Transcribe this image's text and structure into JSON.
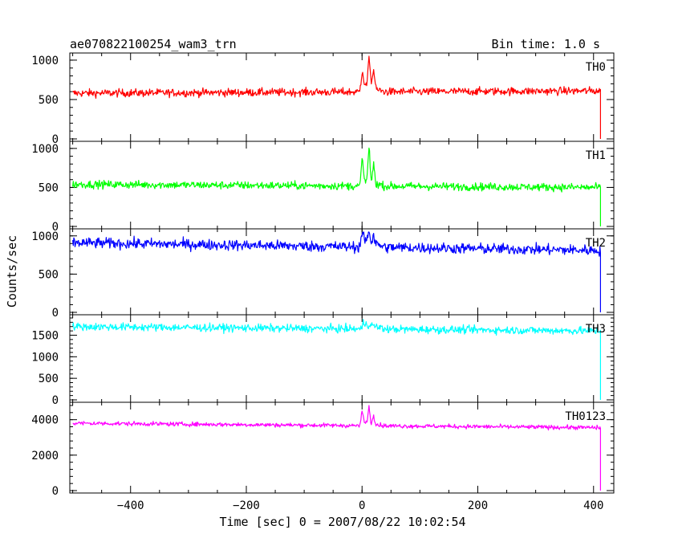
{
  "header": {
    "left": "ae070822100254_wam3_trn",
    "right": "Bin time: 1.0 s"
  },
  "chart_data": {
    "type": "line",
    "title": "ae070822100254_wam3_trn",
    "subtitle": "Bin time: 1.0 s",
    "xlabel": "Time [sec] 0 = 2007/08/22 10:02:54",
    "ylabel": "Counts/sec",
    "xlim": [
      -505,
      435
    ],
    "x_ticks": [
      -400,
      -200,
      0,
      200,
      400
    ],
    "x_tick_labels": [
      "−400",
      "−200",
      "0",
      "200",
      "400"
    ],
    "data_range": [
      -500,
      413
    ],
    "grid": false,
    "legend": "none",
    "series": [
      {
        "name": "TH0",
        "color": "#ff0000",
        "ylim": [
          0,
          1050
        ],
        "y_ticks": [
          0,
          500,
          1000
        ],
        "y_tick_labels": [
          "0",
          "500",
          "1000"
        ],
        "baseline_start": 580,
        "baseline_end": 610,
        "noise": 25,
        "spikes": [
          {
            "x": 0,
            "y": 840
          },
          {
            "x": 12,
            "y": 1010
          },
          {
            "x": 20,
            "y": 850
          }
        ],
        "drop": {
          "x": 412,
          "y": 0
        },
        "points": [
          [
            -500,
            580
          ],
          [
            -300,
            585
          ],
          [
            -100,
            590
          ],
          [
            -5,
            600
          ],
          [
            0,
            840
          ],
          [
            5,
            700
          ],
          [
            12,
            1010
          ],
          [
            20,
            850
          ],
          [
            40,
            640
          ],
          [
            200,
            605
          ],
          [
            400,
            610
          ],
          [
            412,
            0
          ]
        ]
      },
      {
        "name": "TH1",
        "color": "#00ff00",
        "ylim": [
          0,
          1050
        ],
        "y_ticks": [
          0,
          500,
          1000
        ],
        "y_tick_labels": [
          "0",
          "500",
          "1000"
        ],
        "baseline_start": 540,
        "baseline_end": 500,
        "noise": 25,
        "spikes": [
          {
            "x": 0,
            "y": 840
          },
          {
            "x": 12,
            "y": 960
          },
          {
            "x": 20,
            "y": 780
          }
        ],
        "drop": {
          "x": 412,
          "y": 0
        },
        "points": [
          [
            -500,
            540
          ],
          [
            -300,
            535
          ],
          [
            -100,
            525
          ],
          [
            -5,
            520
          ],
          [
            0,
            840
          ],
          [
            5,
            650
          ],
          [
            12,
            960
          ],
          [
            20,
            780
          ],
          [
            40,
            560
          ],
          [
            200,
            510
          ],
          [
            400,
            500
          ],
          [
            412,
            0
          ]
        ]
      },
      {
        "name": "TH2",
        "color": "#0000ff",
        "ylim": [
          0,
          1050
        ],
        "y_ticks": [
          0,
          500,
          1000
        ],
        "y_tick_labels": [
          "0",
          "500",
          "1000"
        ],
        "baseline_start": 910,
        "baseline_end": 810,
        "noise": 35,
        "spikes": [
          {
            "x": 0,
            "y": 1050
          },
          {
            "x": 12,
            "y": 1040
          },
          {
            "x": 20,
            "y": 950
          }
        ],
        "drop": {
          "x": 412,
          "y": 0
        },
        "points": [
          [
            -500,
            910
          ],
          [
            -300,
            880
          ],
          [
            -100,
            860
          ],
          [
            -5,
            850
          ],
          [
            0,
            1050
          ],
          [
            5,
            900
          ],
          [
            12,
            1040
          ],
          [
            20,
            950
          ],
          [
            40,
            860
          ],
          [
            200,
            830
          ],
          [
            400,
            810
          ],
          [
            412,
            0
          ]
        ]
      },
      {
        "name": "TH3",
        "color": "#00ffff",
        "ylim": [
          0,
          1900
        ],
        "y_ticks": [
          0,
          500,
          1000,
          1500
        ],
        "y_tick_labels": [
          "0",
          "500",
          "1000",
          "1500"
        ],
        "baseline_start": 1700,
        "baseline_end": 1600,
        "noise": 45,
        "spikes": [],
        "drop": {
          "x": 412,
          "y": 0
        },
        "points": [
          [
            -500,
            1700
          ],
          [
            -300,
            1680
          ],
          [
            -100,
            1660
          ],
          [
            0,
            1650
          ],
          [
            200,
            1620
          ],
          [
            400,
            1600
          ],
          [
            412,
            0
          ]
        ]
      },
      {
        "name": "TH0123",
        "color": "#ff00ff",
        "ylim": [
          0,
          4800
        ],
        "y_ticks": [
          0,
          2000,
          4000
        ],
        "y_tick_labels": [
          "0",
          "2000",
          "4000"
        ],
        "baseline_start": 3800,
        "baseline_end": 3550,
        "noise": 60,
        "spikes": [
          {
            "x": 0,
            "y": 4500
          },
          {
            "x": 12,
            "y": 4650
          },
          {
            "x": 20,
            "y": 4200
          }
        ],
        "drop": {
          "x": 412,
          "y": 0
        },
        "points": [
          [
            -500,
            3800
          ],
          [
            -300,
            3720
          ],
          [
            -100,
            3650
          ],
          [
            -5,
            3620
          ],
          [
            0,
            4500
          ],
          [
            5,
            4000
          ],
          [
            12,
            4650
          ],
          [
            20,
            4200
          ],
          [
            40,
            3700
          ],
          [
            200,
            3600
          ],
          [
            400,
            3550
          ],
          [
            412,
            0
          ]
        ]
      }
    ]
  }
}
